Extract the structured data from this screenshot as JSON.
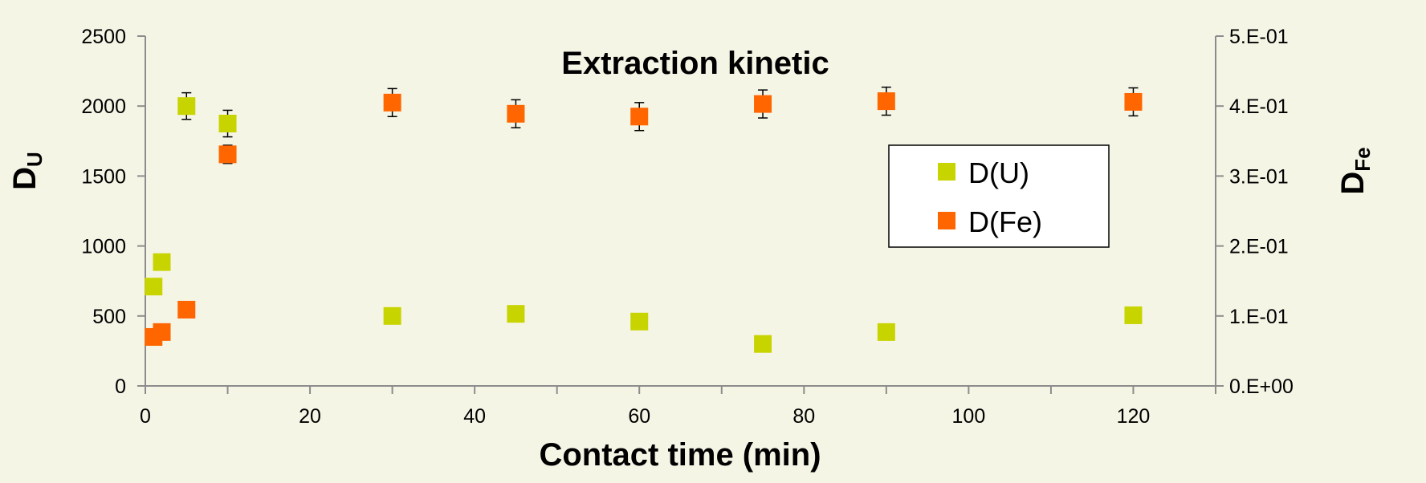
{
  "chart_data": {
    "type": "scatter",
    "title": "Extraction kinetic",
    "xlabel": "Contact time (min)",
    "ylabel": {
      "main": "D",
      "sub": "U"
    },
    "y2label": {
      "main": "D",
      "sub": "Fe"
    },
    "xlim": [
      0,
      130
    ],
    "ylim": [
      0,
      2500
    ],
    "y2lim": [
      0,
      0.5
    ],
    "x_ticks": [
      0,
      20,
      40,
      60,
      80,
      100,
      120
    ],
    "x_tick_labels": [
      "0",
      "20",
      "40",
      "60",
      "80",
      "100",
      "120"
    ],
    "y_ticks": [
      0,
      500,
      1000,
      1500,
      2000,
      2500
    ],
    "y_tick_labels": [
      "0",
      "500",
      "1000",
      "1500",
      "2000",
      "2500"
    ],
    "y2_ticks": [
      0,
      0.1,
      0.2,
      0.3,
      0.4,
      0.5
    ],
    "y2_tick_labels": [
      "0.E+00",
      "1.E-01",
      "2.E-01",
      "3.E-01",
      "4.E-01",
      "5.E-01"
    ],
    "grid": false,
    "legend_position": "right",
    "series": [
      {
        "name": "D(U)",
        "color": "#c8d400",
        "axis": "left",
        "points": [
          {
            "x": 1,
            "y": 710
          },
          {
            "x": 2,
            "y": 885
          },
          {
            "x": 5,
            "y": 2000,
            "err": 95
          },
          {
            "x": 10,
            "y": 1875,
            "err": 95
          },
          {
            "x": 30,
            "y": 500
          },
          {
            "x": 45,
            "y": 515
          },
          {
            "x": 60,
            "y": 460
          },
          {
            "x": 75,
            "y": 300
          },
          {
            "x": 90,
            "y": 385
          },
          {
            "x": 120,
            "y": 505
          }
        ]
      },
      {
        "name": "D(Fe)",
        "color": "#ff6600",
        "axis": "right",
        "points": [
          {
            "x": 1,
            "y": 0.07
          },
          {
            "x": 2,
            "y": 0.077
          },
          {
            "x": 5,
            "y": 0.109
          },
          {
            "x": 10,
            "y": 0.331,
            "err": 0.013
          },
          {
            "x": 30,
            "y": 0.405,
            "err": 0.02
          },
          {
            "x": 45,
            "y": 0.389,
            "err": 0.02
          },
          {
            "x": 60,
            "y": 0.385,
            "err": 0.02
          },
          {
            "x": 75,
            "y": 0.403,
            "err": 0.02
          },
          {
            "x": 90,
            "y": 0.407,
            "err": 0.02
          },
          {
            "x": 120,
            "y": 0.406,
            "err": 0.02
          }
        ]
      }
    ]
  }
}
